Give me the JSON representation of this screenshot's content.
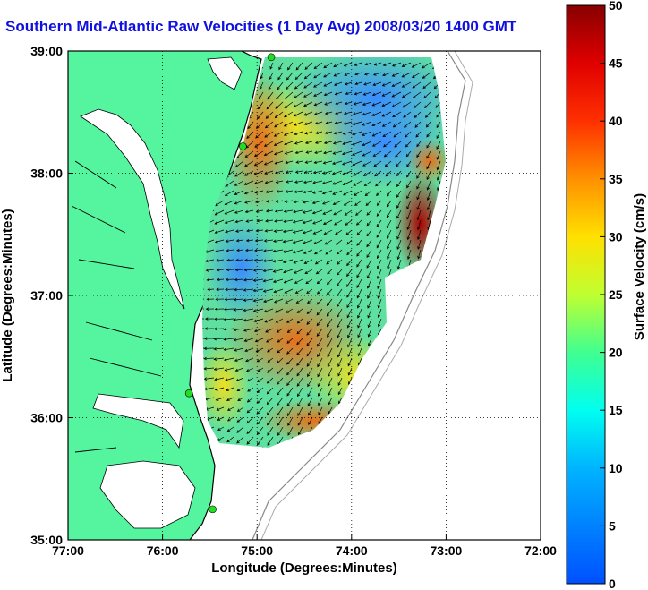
{
  "title": "Southern Mid-Atlantic Raw Velocities (1 Day Avg) 2008/03/20 1400 GMT",
  "x_axis": {
    "label": "Longitude (Degrees:Minutes)",
    "ticks": [
      "77:00",
      "76:00",
      "75:00",
      "74:00",
      "73:00",
      "72:00"
    ]
  },
  "y_axis": {
    "label": "Latitude (Degrees:Minutes)",
    "ticks": [
      "39:00",
      "38:00",
      "37:00",
      "36:00",
      "35:00"
    ]
  },
  "colorbar": {
    "label": "Surface Velocity (cm/s)",
    "ticks": [
      "50",
      "45",
      "40",
      "35",
      "30",
      "25",
      "20",
      "15",
      "10",
      "5",
      "0"
    ],
    "min": 0,
    "max": 50
  },
  "colors": {
    "land": "#55f5a0",
    "title": "#1010e0",
    "station": "#22dd22"
  },
  "map_extent": {
    "lon_min": -77,
    "lon_max": -72,
    "lat_min": 35,
    "lat_max": 39
  },
  "stations": [
    {
      "lon": -74.85,
      "lat": 38.95
    },
    {
      "lon": -75.15,
      "lat": 38.22
    },
    {
      "lon": -75.72,
      "lat": 36.2
    },
    {
      "lon": -75.47,
      "lat": 35.25
    }
  ]
}
